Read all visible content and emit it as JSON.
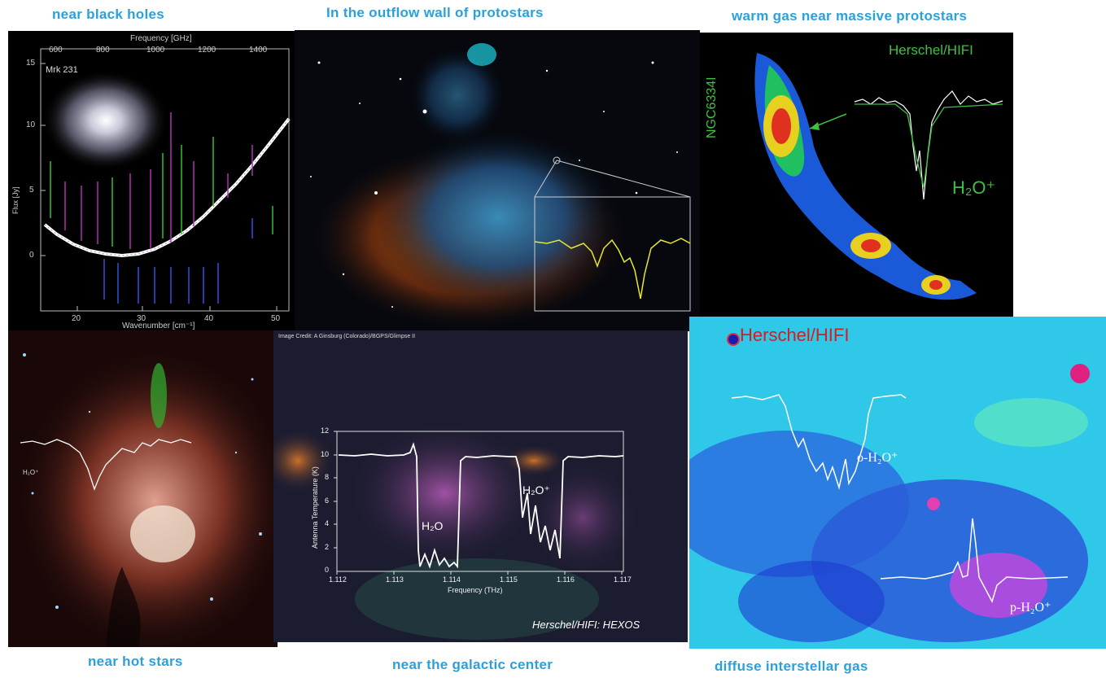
{
  "captions": {
    "top_left": "near black holes",
    "top_center": "In the outflow wall of protostars",
    "top_right": "warm gas near massive protostars",
    "bottom_left": "near hot stars",
    "bottom_center": "near the galactic center",
    "bottom_right": "diffuse interstellar gas"
  },
  "panel_blackholes": {
    "object": "Mrk 231",
    "top_axis_label": "Frequency [GHz]",
    "top_ticks": [
      "600",
      "800",
      "1000",
      "1200",
      "1400"
    ],
    "bottom_axis_label": "Wavenumber [cm⁻¹]",
    "bottom_ticks": [
      "20",
      "30",
      "40",
      "50"
    ],
    "y_axis_label": "Flux [Jy]",
    "y_ticks": [
      "15",
      "10",
      "5",
      "0"
    ]
  },
  "panel_warmgas": {
    "source": "NGC6334I",
    "instrument": "Herschel/HIFI",
    "molecule": "H₂O⁺"
  },
  "panel_hotstars": {
    "molecule": "H₂O⁺"
  },
  "panel_galactic": {
    "credit": "Image Credit: A Ginsburg (Colorado)/BGPS/Glimpse II",
    "instrument_label": "Herschel/HIFI: HEXOS",
    "xlabel": "Frequency (THz)",
    "ylabel": "Antenna Temperature (K)",
    "x_ticks": [
      "1.112",
      "1.113",
      "1.114",
      "1.115",
      "1.116",
      "1.117"
    ],
    "y_ticks": [
      "12",
      "10",
      "8",
      "6",
      "4",
      "2",
      "0"
    ],
    "label_h2o": "H₂O",
    "label_h2op": "H₂O⁺"
  },
  "panel_diffuse": {
    "instrument": "Herschel/HIFI",
    "label_ortho": "o-H₂O⁺",
    "label_para": "p-H₂O⁺"
  },
  "colors": {
    "caption": "#2aa0dc",
    "spectrum_yellow": "#e8e830",
    "herschel_green": "#40c040",
    "herschel_red": "#d02020"
  }
}
